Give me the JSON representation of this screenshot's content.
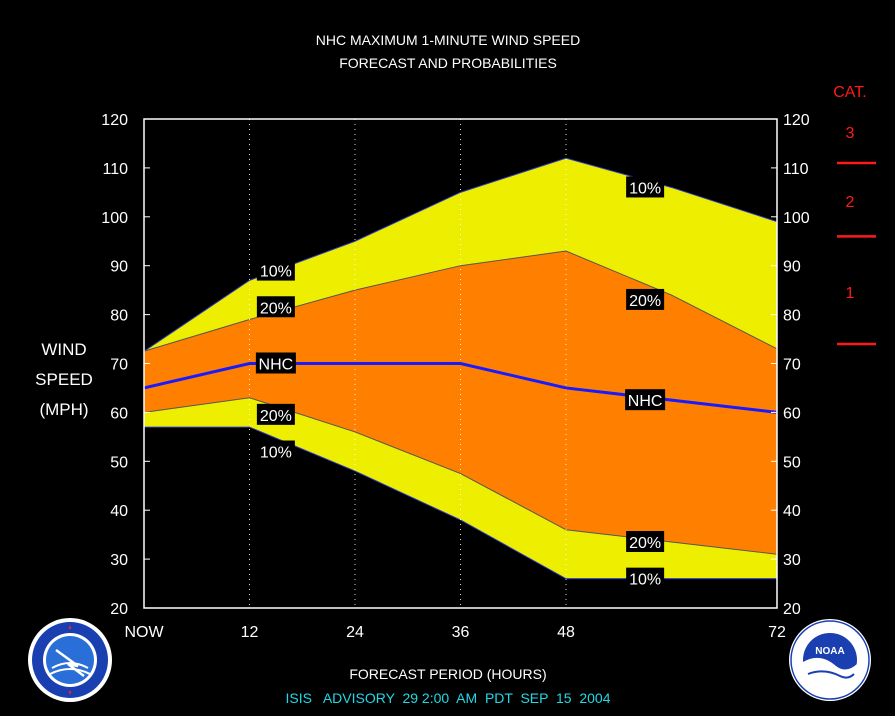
{
  "colors": {
    "background": "#000000",
    "outer_band": "#eeee00",
    "inner_band": "#ff8000",
    "nhc_line": "#1a1aff",
    "category_red": "#ff1a1a",
    "advisory_cyan": "#22d8e6"
  },
  "header": {
    "line1": "NHC MAXIMUM 1-MINUTE WIND SPEED",
    "line2": "FORECAST AND PROBABILITIES"
  },
  "footer": {
    "xlabel": "FORECAST PERIOD (HOURS)",
    "advisory": "ISIS   ADVISORY  29 2:00  AM  PDT  SEP  15  2004"
  },
  "y_label": [
    "WIND",
    "SPEED",
    "(MPH)"
  ],
  "category": {
    "title": "CAT.",
    "labels": [
      "3",
      "2",
      "1"
    ]
  },
  "logos": {
    "left": "NATIONAL WEATHER SERVICE",
    "right": "NOAA"
  },
  "chart_data": {
    "type": "area",
    "title": "NHC MAXIMUM 1-MINUTE WIND SPEED FORECAST AND PROBABILITIES",
    "xlabel": "FORECAST PERIOD (HOURS)",
    "ylabel": "WIND SPEED (MPH)",
    "xlim": [
      0,
      72
    ],
    "ylim": [
      20,
      120
    ],
    "x_ticks": [
      0,
      12,
      24,
      36,
      48,
      72
    ],
    "x_tick_labels": [
      "NOW",
      "12",
      "24",
      "36",
      "48",
      "72"
    ],
    "y_ticks": [
      20,
      30,
      40,
      50,
      60,
      70,
      80,
      90,
      100,
      110,
      120
    ],
    "grid": "vertical dotted at 12, 24, 36, 48",
    "x": [
      0,
      12,
      24,
      36,
      48,
      60,
      72
    ],
    "series": [
      {
        "name": "10%",
        "values": [
          72.5,
          87,
          95,
          105,
          112,
          106,
          99
        ]
      },
      {
        "name": "20%",
        "values": [
          72.5,
          79,
          85,
          90,
          93,
          84,
          73
        ]
      },
      {
        "name": "NHC",
        "values": [
          65,
          70,
          70,
          70,
          65,
          62.5,
          60
        ]
      },
      {
        "name": "20%",
        "values": [
          60,
          63,
          56,
          47.5,
          36,
          33.5,
          31
        ]
      },
      {
        "name": "10%",
        "values": [
          57,
          57,
          48,
          38,
          26,
          26,
          26
        ]
      }
    ],
    "curve_labels": [
      {
        "text": "10%",
        "x": 15,
        "y": 89
      },
      {
        "text": "20%",
        "x": 15,
        "y": 81.5
      },
      {
        "text": "NHC",
        "x": 15,
        "y": 70
      },
      {
        "text": "20%",
        "x": 15,
        "y": 59.5
      },
      {
        "text": "10%",
        "x": 15,
        "y": 52
      },
      {
        "text": "10%",
        "x": 57,
        "y": 106
      },
      {
        "text": "20%",
        "x": 57,
        "y": 83
      },
      {
        "text": "NHC",
        "x": 57,
        "y": 62.5
      },
      {
        "text": "20%",
        "x": 57,
        "y": 33.5
      },
      {
        "text": "10%",
        "x": 57,
        "y": 26
      }
    ],
    "category_thresholds": [
      74,
      96,
      111
    ]
  }
}
